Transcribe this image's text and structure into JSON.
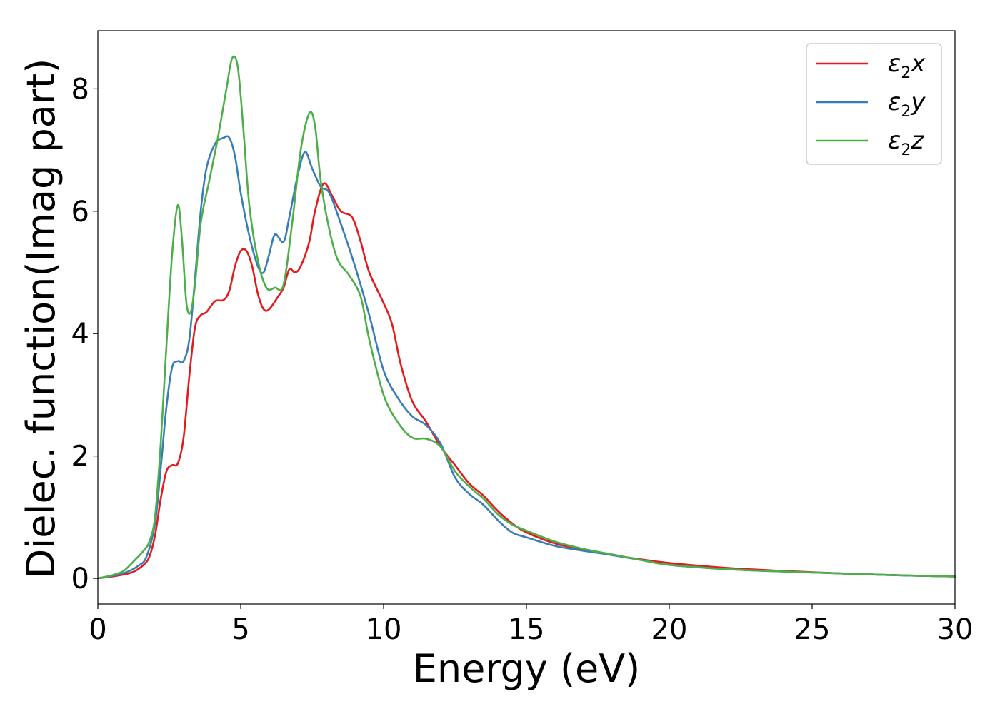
{
  "chart_data": {
    "type": "line",
    "title": "",
    "xlabel": "Energy (eV)",
    "ylabel": "Dielec. function(Imag part)",
    "xlim": [
      0,
      30
    ],
    "ylim": [
      -0.42,
      8.95
    ],
    "xticks": [
      0,
      5,
      10,
      15,
      20,
      25,
      30
    ],
    "xtick_labels": [
      "0",
      "5",
      "10",
      "15",
      "20",
      "25",
      "30"
    ],
    "yticks": [
      0,
      2,
      4,
      6,
      8
    ],
    "ytick_labels": [
      "0",
      "2",
      "4",
      "6",
      "8"
    ],
    "grid": false,
    "legend_position": "top-right",
    "series": [
      {
        "name": "ε2x",
        "legend_base": "ε",
        "legend_sub": "2",
        "legend_suffix": "x",
        "color": "#e41a1c",
        "points": [
          [
            0,
            0
          ],
          [
            0.5,
            0.03
          ],
          [
            1.0,
            0.07
          ],
          [
            1.3,
            0.12
          ],
          [
            1.6,
            0.22
          ],
          [
            1.8,
            0.35
          ],
          [
            2.0,
            0.7
          ],
          [
            2.2,
            1.3
          ],
          [
            2.4,
            1.75
          ],
          [
            2.6,
            1.85
          ],
          [
            2.8,
            1.88
          ],
          [
            3.0,
            2.3
          ],
          [
            3.2,
            3.3
          ],
          [
            3.4,
            4.1
          ],
          [
            3.6,
            4.3
          ],
          [
            3.8,
            4.35
          ],
          [
            4.1,
            4.53
          ],
          [
            4.4,
            4.55
          ],
          [
            4.6,
            4.7
          ],
          [
            4.8,
            5.1
          ],
          [
            5.0,
            5.35
          ],
          [
            5.2,
            5.35
          ],
          [
            5.4,
            5.1
          ],
          [
            5.6,
            4.65
          ],
          [
            5.8,
            4.4
          ],
          [
            6.0,
            4.4
          ],
          [
            6.3,
            4.6
          ],
          [
            6.5,
            4.75
          ],
          [
            6.7,
            5.05
          ],
          [
            6.9,
            5.0
          ],
          [
            7.1,
            5.1
          ],
          [
            7.4,
            5.5
          ],
          [
            7.6,
            6.0
          ],
          [
            7.9,
            6.45
          ],
          [
            8.2,
            6.25
          ],
          [
            8.5,
            6.0
          ],
          [
            8.9,
            5.9
          ],
          [
            9.2,
            5.5
          ],
          [
            9.5,
            5.0
          ],
          [
            10.0,
            4.5
          ],
          [
            10.3,
            4.15
          ],
          [
            10.6,
            3.5
          ],
          [
            11.0,
            2.9
          ],
          [
            11.5,
            2.55
          ],
          [
            12.0,
            2.15
          ],
          [
            12.5,
            1.85
          ],
          [
            13.0,
            1.55
          ],
          [
            13.5,
            1.35
          ],
          [
            14.0,
            1.1
          ],
          [
            14.5,
            0.9
          ],
          [
            15.0,
            0.75
          ],
          [
            16.0,
            0.57
          ],
          [
            17.0,
            0.47
          ],
          [
            18.0,
            0.38
          ],
          [
            19.0,
            0.31
          ],
          [
            20.0,
            0.25
          ],
          [
            22.0,
            0.17
          ],
          [
            24.0,
            0.12
          ],
          [
            26.0,
            0.08
          ],
          [
            28.0,
            0.05
          ],
          [
            30.0,
            0.03
          ]
        ]
      },
      {
        "name": "ε2y",
        "legend_base": "ε",
        "legend_sub": "2",
        "legend_suffix": "y",
        "color": "#377eb8",
        "points": [
          [
            0,
            0
          ],
          [
            0.5,
            0.04
          ],
          [
            1.0,
            0.1
          ],
          [
            1.4,
            0.2
          ],
          [
            1.7,
            0.35
          ],
          [
            2.0,
            0.9
          ],
          [
            2.2,
            1.8
          ],
          [
            2.4,
            2.8
          ],
          [
            2.6,
            3.45
          ],
          [
            2.8,
            3.55
          ],
          [
            3.0,
            3.55
          ],
          [
            3.2,
            3.9
          ],
          [
            3.4,
            4.9
          ],
          [
            3.6,
            6.0
          ],
          [
            3.8,
            6.7
          ],
          [
            4.1,
            7.1
          ],
          [
            4.4,
            7.2
          ],
          [
            4.6,
            7.2
          ],
          [
            4.8,
            6.9
          ],
          [
            5.0,
            6.3
          ],
          [
            5.3,
            5.6
          ],
          [
            5.6,
            5.1
          ],
          [
            5.8,
            5.0
          ],
          [
            6.0,
            5.3
          ],
          [
            6.2,
            5.62
          ],
          [
            6.5,
            5.5
          ],
          [
            6.7,
            5.9
          ],
          [
            7.0,
            6.6
          ],
          [
            7.25,
            6.97
          ],
          [
            7.5,
            6.7
          ],
          [
            7.8,
            6.4
          ],
          [
            8.1,
            6.3
          ],
          [
            8.5,
            5.8
          ],
          [
            9.0,
            5.1
          ],
          [
            9.5,
            4.3
          ],
          [
            10.0,
            3.4
          ],
          [
            10.5,
            2.95
          ],
          [
            11.0,
            2.65
          ],
          [
            11.5,
            2.5
          ],
          [
            12.0,
            2.2
          ],
          [
            12.5,
            1.65
          ],
          [
            13.0,
            1.38
          ],
          [
            13.5,
            1.2
          ],
          [
            14.0,
            0.95
          ],
          [
            14.5,
            0.75
          ],
          [
            15.0,
            0.67
          ],
          [
            16.0,
            0.53
          ],
          [
            17.0,
            0.45
          ],
          [
            18.0,
            0.38
          ],
          [
            19.0,
            0.3
          ],
          [
            20.0,
            0.22
          ],
          [
            22.0,
            0.15
          ],
          [
            24.0,
            0.11
          ],
          [
            26.0,
            0.08
          ],
          [
            28.0,
            0.05
          ],
          [
            30.0,
            0.03
          ]
        ]
      },
      {
        "name": "ε2z",
        "legend_base": "ε",
        "legend_sub": "2",
        "legend_suffix": "z",
        "color": "#4daf4a",
        "points": [
          [
            0,
            0
          ],
          [
            0.5,
            0.05
          ],
          [
            0.9,
            0.12
          ],
          [
            1.3,
            0.3
          ],
          [
            1.6,
            0.45
          ],
          [
            1.8,
            0.6
          ],
          [
            2.0,
            1.0
          ],
          [
            2.2,
            2.2
          ],
          [
            2.4,
            3.8
          ],
          [
            2.6,
            5.3
          ],
          [
            2.8,
            6.1
          ],
          [
            2.95,
            5.5
          ],
          [
            3.1,
            4.5
          ],
          [
            3.25,
            4.35
          ],
          [
            3.4,
            4.8
          ],
          [
            3.6,
            5.8
          ],
          [
            3.9,
            6.5
          ],
          [
            4.2,
            7.2
          ],
          [
            4.5,
            8.0
          ],
          [
            4.7,
            8.5
          ],
          [
            4.9,
            8.35
          ],
          [
            5.1,
            7.3
          ],
          [
            5.3,
            6.1
          ],
          [
            5.6,
            5.2
          ],
          [
            5.9,
            4.75
          ],
          [
            6.2,
            4.75
          ],
          [
            6.5,
            4.8
          ],
          [
            6.8,
            5.8
          ],
          [
            7.1,
            7.0
          ],
          [
            7.4,
            7.6
          ],
          [
            7.6,
            7.4
          ],
          [
            7.8,
            6.5
          ],
          [
            8.1,
            5.7
          ],
          [
            8.4,
            5.2
          ],
          [
            8.8,
            4.95
          ],
          [
            9.2,
            4.6
          ],
          [
            9.5,
            3.9
          ],
          [
            10.0,
            3.0
          ],
          [
            10.5,
            2.55
          ],
          [
            11.0,
            2.3
          ],
          [
            11.5,
            2.28
          ],
          [
            12.0,
            2.15
          ],
          [
            12.5,
            1.75
          ],
          [
            13.0,
            1.5
          ],
          [
            13.5,
            1.3
          ],
          [
            14.0,
            1.05
          ],
          [
            14.5,
            0.88
          ],
          [
            15.0,
            0.78
          ],
          [
            16.0,
            0.6
          ],
          [
            17.0,
            0.48
          ],
          [
            18.0,
            0.39
          ],
          [
            19.0,
            0.3
          ],
          [
            20.0,
            0.22
          ],
          [
            22.0,
            0.15
          ],
          [
            24.0,
            0.11
          ],
          [
            26.0,
            0.08
          ],
          [
            28.0,
            0.05
          ],
          [
            30.0,
            0.03
          ]
        ]
      }
    ]
  }
}
